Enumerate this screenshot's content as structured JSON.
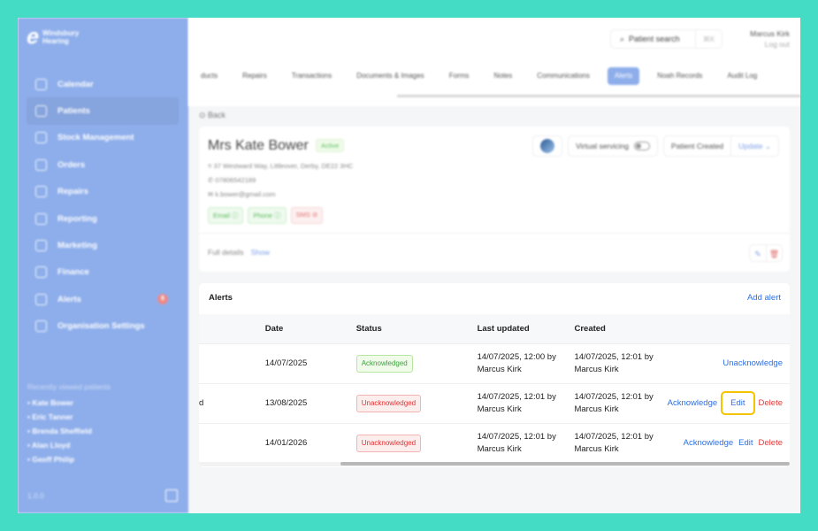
{
  "sidebar": {
    "brand": "Windsbury Hearing",
    "items": [
      {
        "label": "Calendar",
        "icon": "calendar-icon"
      },
      {
        "label": "Patients",
        "icon": "patients-icon",
        "active": true
      },
      {
        "label": "Stock Management",
        "icon": "clipboard-icon"
      },
      {
        "label": "Orders",
        "icon": "orders-icon"
      },
      {
        "label": "Repairs",
        "icon": "wrench-icon"
      },
      {
        "label": "Reporting",
        "icon": "chart-pie-icon"
      },
      {
        "label": "Marketing",
        "icon": "mail-icon"
      },
      {
        "label": "Finance",
        "icon": "card-icon"
      },
      {
        "label": "Alerts",
        "icon": "bell-icon",
        "badge": "8"
      },
      {
        "label": "Organisation Settings",
        "icon": "gear-icon"
      }
    ],
    "recent_title": "Recently viewed patients",
    "recent": [
      "Kate Bower",
      "Eric Tanner",
      "Brenda Sheffield",
      "Alan Lloyd",
      "Geoff Philip"
    ],
    "version": "1.0.0"
  },
  "header": {
    "search_placeholder": "Patient search",
    "shortcut": "⌘K",
    "user_name": "Marcus Kirk",
    "logout": "Log out"
  },
  "tabs": [
    "ducts",
    "Repairs",
    "Transactions",
    "Documents & Images",
    "Forms",
    "Notes",
    "Communications",
    "Alerts",
    "Noah Records",
    "Audit Log"
  ],
  "active_tab": "Alerts",
  "back": "Back",
  "patient": {
    "name": "Mrs Kate Bower",
    "status": "Active",
    "address": "37 Westward Way, Littleover, Derby, DE22 3HC",
    "phone": "07806542189",
    "email": "k.bower@gmail.com",
    "chips": [
      {
        "label": "Email",
        "ok": true
      },
      {
        "label": "Phone",
        "ok": true
      },
      {
        "label": "SMS",
        "ok": false
      }
    ],
    "virtual_servicing": "Virtual servicing",
    "virtual_servicing_on": false,
    "patient_status": "Patient Created",
    "update": "Update",
    "full_details": "Full details",
    "show": "Show"
  },
  "alerts": {
    "title": "Alerts",
    "add": "Add alert",
    "columns": [
      "",
      "Date",
      "Status",
      "Last updated",
      "Created",
      ""
    ],
    "rows": [
      {
        "desc": "",
        "date": "14/07/2025",
        "status": "Acknowledged",
        "updated": "14/07/2025, 12:00 by Marcus Kirk",
        "created": "14/07/2025, 12:01 by Marcus Kirk",
        "actions": [
          "Unacknowledge"
        ]
      },
      {
        "desc": "d",
        "date": "13/08/2025",
        "status": "Unacknowledged",
        "updated": "14/07/2025, 12:01 by Marcus Kirk",
        "created": "14/07/2025, 12:01 by Marcus Kirk",
        "actions": [
          "Acknowledge",
          "Edit",
          "Delete"
        ]
      },
      {
        "desc": "",
        "date": "14/01/2026",
        "status": "Unacknowledged",
        "updated": "14/07/2025, 12:01 by Marcus Kirk",
        "created": "14/07/2025, 12:01 by Marcus Kirk",
        "actions": [
          "Acknowledge",
          "Edit",
          "Delete"
        ]
      }
    ]
  },
  "colors": {
    "frame": "#44dcc4",
    "sidebar": "#8eaeeb",
    "link": "#2f6fe0",
    "danger": "#e53b3b",
    "highlight": "#f5c400"
  }
}
